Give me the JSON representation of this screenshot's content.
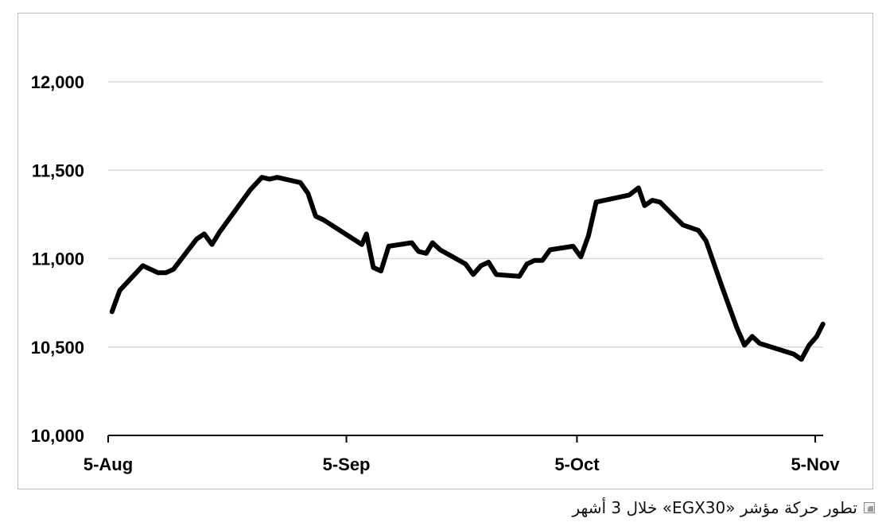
{
  "chart_data": {
    "type": "line",
    "title": "",
    "xlabel": "",
    "ylabel": "",
    "ylim": [
      10000,
      12200
    ],
    "yticks": [
      10000,
      10500,
      11000,
      11500,
      12000
    ],
    "ytick_labels": [
      "10,000",
      "10,500",
      "11,000",
      "11,500",
      "12,000"
    ],
    "xticks": [
      {
        "label": "5-Aug",
        "day": 0
      },
      {
        "label": "5-Sep",
        "day": 31
      },
      {
        "label": "5-Oct",
        "day": 61
      },
      {
        "label": "5-Nov",
        "day": 92
      }
    ],
    "grid": true,
    "legend": "none",
    "series": [
      {
        "color": "#000000",
        "points": [
          [
            0.5,
            10700
          ],
          [
            1.5,
            10820
          ],
          [
            4.5,
            10960
          ],
          [
            6.5,
            10920
          ],
          [
            7.5,
            10920
          ],
          [
            8.5,
            10940
          ],
          [
            11.5,
            11110
          ],
          [
            12.5,
            11140
          ],
          [
            13.5,
            11080
          ],
          [
            14.5,
            11150
          ],
          [
            18.5,
            11390
          ],
          [
            20.0,
            11460
          ],
          [
            21.0,
            11450
          ],
          [
            22.0,
            11460
          ],
          [
            25.0,
            11430
          ],
          [
            26.0,
            11370
          ],
          [
            27.0,
            11240
          ],
          [
            28.0,
            11220
          ],
          [
            33.0,
            11080
          ],
          [
            33.6,
            11140
          ],
          [
            34.5,
            10950
          ],
          [
            35.5,
            10930
          ],
          [
            36.5,
            11070
          ],
          [
            39.5,
            11090
          ],
          [
            40.4,
            11040
          ],
          [
            41.4,
            11030
          ],
          [
            42.2,
            11090
          ],
          [
            43.2,
            11050
          ],
          [
            46.5,
            10970
          ],
          [
            47.5,
            10910
          ],
          [
            48.5,
            10960
          ],
          [
            49.5,
            10980
          ],
          [
            50.5,
            10910
          ],
          [
            53.5,
            10900
          ],
          [
            54.5,
            10970
          ],
          [
            55.5,
            10990
          ],
          [
            56.5,
            10990
          ],
          [
            57.5,
            11050
          ],
          [
            60.5,
            11070
          ],
          [
            61.5,
            11010
          ],
          [
            62.5,
            11130
          ],
          [
            63.5,
            11320
          ],
          [
            67.8,
            11360
          ],
          [
            69.0,
            11400
          ],
          [
            69.8,
            11300
          ],
          [
            70.8,
            11330
          ],
          [
            71.8,
            11320
          ],
          [
            74.8,
            11190
          ],
          [
            76.8,
            11160
          ],
          [
            77.8,
            11100
          ],
          [
            79.8,
            10850
          ],
          [
            81.8,
            10610
          ],
          [
            82.8,
            10510
          ],
          [
            83.8,
            10560
          ],
          [
            84.8,
            10520
          ],
          [
            89.2,
            10460
          ],
          [
            90.2,
            10430
          ],
          [
            91.2,
            10510
          ],
          [
            92.2,
            10560
          ],
          [
            93.0,
            10630
          ]
        ]
      }
    ]
  },
  "caption": {
    "text": "تطور حركة مؤشر «EGX30» خلال 3 أشهر",
    "icon": "image-icon"
  }
}
